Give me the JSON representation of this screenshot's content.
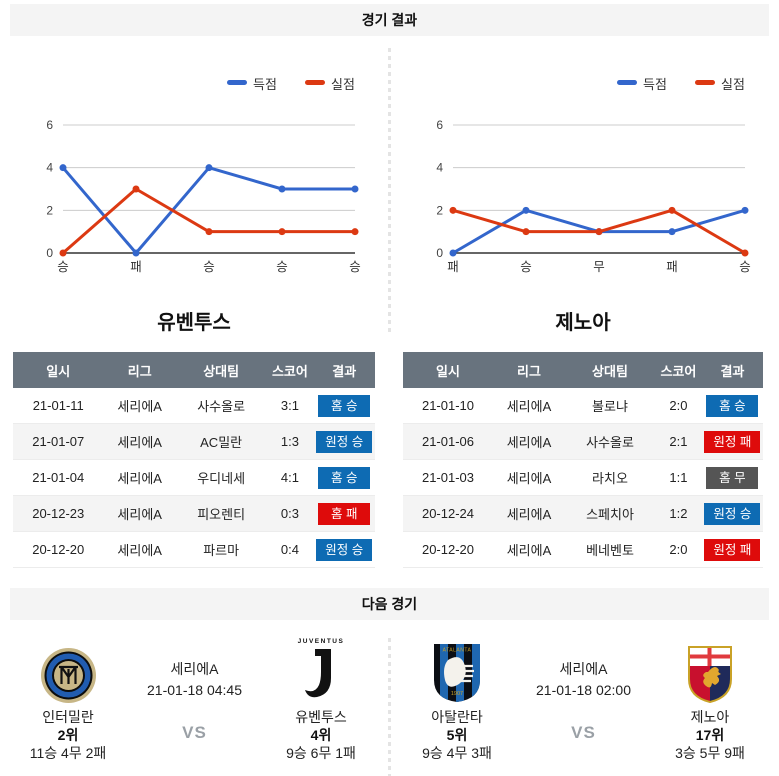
{
  "sections": {
    "results_header": "경기 결과",
    "next_header": "다음 경기"
  },
  "colors": {
    "series_blue": "#3366CC",
    "series_red": "#DC3912",
    "win_badge": "#0E6BB3",
    "lose_badge": "#DE0B0B",
    "draw_badge": "#555555",
    "table_header_bg": "#68737E",
    "band_bg": "#F4F4F4"
  },
  "chart_data": [
    {
      "type": "line",
      "categories": [
        "승",
        "패",
        "승",
        "승",
        "승"
      ],
      "series": [
        {
          "name": "득점",
          "color": "#3366CC",
          "values": [
            4,
            0,
            4,
            3,
            3
          ]
        },
        {
          "name": "실점",
          "color": "#DC3912",
          "values": [
            0,
            3,
            1,
            1,
            1
          ]
        }
      ],
      "ylim": [
        0,
        6
      ],
      "yticks": [
        0,
        2,
        4,
        6
      ],
      "legend_position": "top-right",
      "grid": true
    },
    {
      "type": "line",
      "categories": [
        "패",
        "승",
        "무",
        "패",
        "승"
      ],
      "series": [
        {
          "name": "득점",
          "color": "#3366CC",
          "values": [
            0,
            2,
            1,
            1,
            2
          ]
        },
        {
          "name": "실점",
          "color": "#DC3912",
          "values": [
            2,
            1,
            1,
            2,
            0
          ]
        }
      ],
      "ylim": [
        0,
        6
      ],
      "yticks": [
        0,
        2,
        4,
        6
      ],
      "legend_position": "top-right",
      "grid": true
    }
  ],
  "table_headers": [
    "일시",
    "리그",
    "상대팀",
    "스코어",
    "결과"
  ],
  "teams": [
    {
      "name": "유벤투스",
      "table": {
        "rows": [
          {
            "date": "21-01-11",
            "league": "세리에A",
            "opponent": "사수올로",
            "score": "3:1",
            "result": "홈 승",
            "result_type": "win"
          },
          {
            "date": "21-01-07",
            "league": "세리에A",
            "opponent": "AC밀란",
            "score": "1:3",
            "result": "원정 승",
            "result_type": "win"
          },
          {
            "date": "21-01-04",
            "league": "세리에A",
            "opponent": "우디네세",
            "score": "4:1",
            "result": "홈 승",
            "result_type": "win"
          },
          {
            "date": "20-12-23",
            "league": "세리에A",
            "opponent": "피오렌티",
            "score": "0:3",
            "result": "홈 패",
            "result_type": "lose"
          },
          {
            "date": "20-12-20",
            "league": "세리에A",
            "opponent": "파르마",
            "score": "0:4",
            "result": "원정 승",
            "result_type": "win"
          }
        ]
      }
    },
    {
      "name": "제노아",
      "table": {
        "rows": [
          {
            "date": "21-01-10",
            "league": "세리에A",
            "opponent": "볼로냐",
            "score": "2:0",
            "result": "홈 승",
            "result_type": "win"
          },
          {
            "date": "21-01-06",
            "league": "세리에A",
            "opponent": "사수올로",
            "score": "2:1",
            "result": "원정 패",
            "result_type": "lose"
          },
          {
            "date": "21-01-03",
            "league": "세리에A",
            "opponent": "라치오",
            "score": "1:1",
            "result": "홈 무",
            "result_type": "draw"
          },
          {
            "date": "20-12-24",
            "league": "세리에A",
            "opponent": "스페치아",
            "score": "1:2",
            "result": "원정 승",
            "result_type": "win"
          },
          {
            "date": "20-12-20",
            "league": "세리에A",
            "opponent": "베네벤토",
            "score": "2:0",
            "result": "원정 패",
            "result_type": "lose"
          }
        ]
      }
    }
  ],
  "next_matches": [
    {
      "league": "세리에A",
      "datetime": "21-01-18 04:45",
      "vs_label": "VS",
      "home": {
        "name": "인터밀란",
        "rank": "2위",
        "record": "11승 4무 2패",
        "logo": "inter-milan-logo"
      },
      "away": {
        "name": "유벤투스",
        "rank": "4위",
        "record": "9승 6무 1패",
        "logo": "juventus-logo",
        "logo_text": "JUVENTUS"
      }
    },
    {
      "league": "세리에A",
      "datetime": "21-01-18 02:00",
      "vs_label": "VS",
      "home": {
        "name": "아탈란타",
        "rank": "5위",
        "record": "9승 4무 3패",
        "logo": "atalanta-logo",
        "logo_year": "1907"
      },
      "away": {
        "name": "제노아",
        "rank": "17위",
        "record": "3승 5무 9패",
        "logo": "genoa-logo"
      }
    }
  ]
}
